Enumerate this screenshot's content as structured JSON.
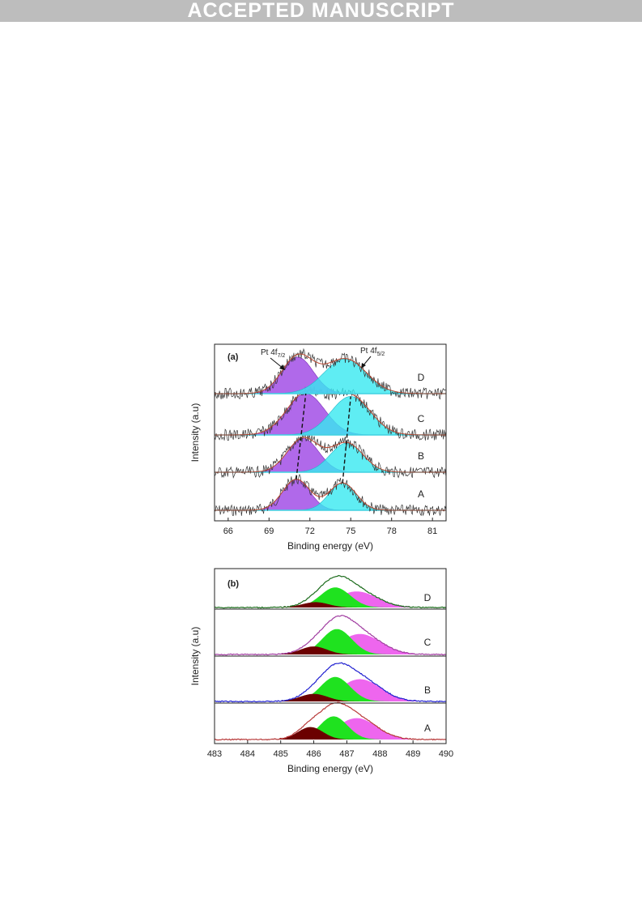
{
  "banner": {
    "text": "ACCEPTED MANUSCRIPT"
  },
  "colors": {
    "banner": "#bdbdbd",
    "pt_peak1": "#a24fe6",
    "pt_peak2": "#37e8f0",
    "pt_baseline": "#41d2e1",
    "pt_envelope": "#b9472f",
    "b_dark": "#6b0000",
    "b_green": "#1fe21f",
    "b_pink": "#ee66ee",
    "b_lines": [
      "#b73838",
      "#2020d0",
      "#a03ca0",
      "#1b6b1b"
    ]
  },
  "chart_data": [
    {
      "type": "area",
      "panel_label": "(a)",
      "xlabel": "Binding energy (eV)",
      "ylabel": "Intensity (a.u)",
      "xlim": [
        65,
        82
      ],
      "xticks": [
        66,
        69,
        72,
        75,
        78,
        81
      ],
      "grid": false,
      "annotations": [
        {
          "main": "Pt 4f",
          "sub": "7/2"
        },
        {
          "main": "Pt 4f",
          "sub": "5/2"
        }
      ],
      "series": [
        {
          "name": "A",
          "peak1_center": 71.0,
          "peak1_height": 0.66,
          "peak1_sigma": 1.0,
          "peak2_center": 74.4,
          "peak2_height": 0.58,
          "peak2_sigma": 1.0
        },
        {
          "name": "B",
          "peak1_center": 71.5,
          "peak1_height": 0.72,
          "peak1_sigma": 1.15,
          "peak2_center": 74.7,
          "peak2_height": 0.62,
          "peak2_sigma": 1.2
        },
        {
          "name": "C",
          "peak1_center": 71.7,
          "peak1_height": 0.88,
          "peak1_sigma": 1.4,
          "peak2_center": 75.0,
          "peak2_height": 0.82,
          "peak2_sigma": 1.45
        },
        {
          "name": "D",
          "peak1_center": 71.1,
          "peak1_height": 0.78,
          "peak1_sigma": 1.15,
          "peak2_center": 74.6,
          "peak2_height": 0.74,
          "peak2_sigma": 1.55
        }
      ]
    },
    {
      "type": "area",
      "panel_label": "(b)",
      "xlabel": "Binding energy (eV)",
      "ylabel": "Intensity (a.u)",
      "xlim": [
        483,
        490
      ],
      "xticks": [
        483,
        484,
        485,
        486,
        487,
        488,
        489,
        490
      ],
      "grid": false,
      "series": [
        {
          "name": "A",
          "dark_center": 485.9,
          "dark_height": 0.28,
          "dark_sigma": 0.38,
          "green_center": 486.6,
          "green_height": 0.52,
          "green_sigma": 0.42,
          "pink_center": 487.3,
          "pink_height": 0.48,
          "pink_sigma": 0.6
        },
        {
          "name": "B",
          "dark_center": 486.0,
          "dark_height": 0.17,
          "dark_sigma": 0.42,
          "green_center": 486.65,
          "green_height": 0.55,
          "green_sigma": 0.45,
          "pink_center": 487.4,
          "pink_height": 0.5,
          "pink_sigma": 0.62
        },
        {
          "name": "C",
          "dark_center": 486.0,
          "dark_height": 0.18,
          "dark_sigma": 0.4,
          "green_center": 486.7,
          "green_height": 0.57,
          "green_sigma": 0.45,
          "pink_center": 487.4,
          "pink_height": 0.46,
          "pink_sigma": 0.62
        },
        {
          "name": "D",
          "dark_center": 486.05,
          "dark_height": 0.12,
          "dark_sigma": 0.4,
          "green_center": 486.65,
          "green_height": 0.45,
          "green_sigma": 0.45,
          "pink_center": 487.3,
          "pink_height": 0.36,
          "pink_sigma": 0.62
        }
      ]
    }
  ]
}
